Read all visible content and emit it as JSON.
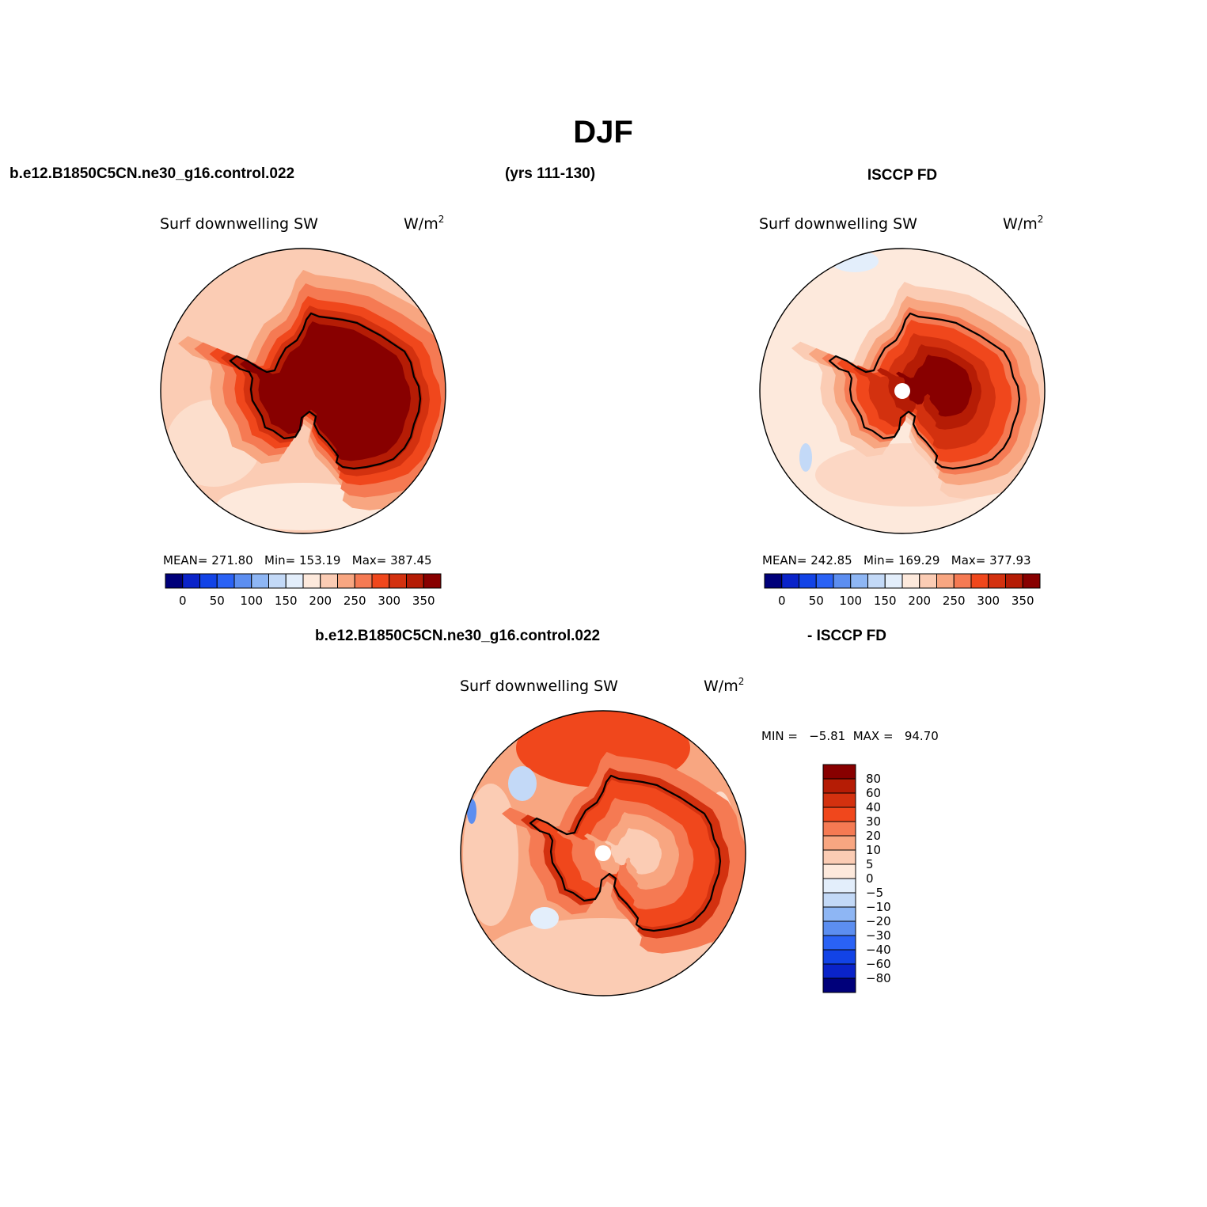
{
  "page": {
    "title": "DJF",
    "header_left": "b.e12.B1850C5CN.ne30_g16.control.022",
    "header_mid": "(yrs 111-130)",
    "header_right": "ISCCP FD",
    "diff_header_left": "b.e12.B1850C5CN.ne30_g16.control.022",
    "diff_header_right": "- ISCCP FD"
  },
  "panels": [
    {
      "variable": "Surf downwelling SW",
      "units": "W/m",
      "units_sup": "2",
      "stats": "MEAN= 271.80   Min= 153.19   Max= 387.45",
      "shows_pole_marker": false
    },
    {
      "variable": "Surf downwelling SW",
      "units": "W/m",
      "units_sup": "2",
      "stats": "MEAN= 242.85   Min= 169.29   Max= 377.93",
      "shows_pole_marker": true
    },
    {
      "variable": "Surf downwelling SW",
      "units": "W/m",
      "units_sup": "2",
      "stats": "MIN =   −5.81  MAX =   94.70",
      "shows_pole_marker": true
    }
  ],
  "colorbars": {
    "absolute": {
      "colors": [
        "#00007a",
        "#0a23c9",
        "#1243e6",
        "#2a62f5",
        "#5c8ef0",
        "#8eb6f4",
        "#c3d9f7",
        "#e3eefb",
        "#fde9dc",
        "#fbccb4",
        "#f8a681",
        "#f57a53",
        "#f0471c",
        "#d3310f",
        "#b51c05",
        "#880000"
      ],
      "tick_labels": [
        "0",
        "50",
        "100",
        "150",
        "200",
        "250",
        "300",
        "350"
      ]
    },
    "difference": {
      "colors_top_to_bottom": [
        "#880000",
        "#b51c05",
        "#d3310f",
        "#f0471c",
        "#f57a53",
        "#f8a681",
        "#fbccb4",
        "#fde9dc",
        "#e3eefb",
        "#c3d9f7",
        "#8eb6f4",
        "#5c8ef0",
        "#2a62f5",
        "#1243e6",
        "#0a23c9",
        "#00007a"
      ],
      "tick_labels_top_to_bottom": [
        "80",
        "60",
        "40",
        "30",
        "20",
        "10",
        "5",
        "0",
        "−5",
        "−10",
        "−20",
        "−30",
        "−40",
        "−60",
        "−80"
      ]
    }
  }
}
